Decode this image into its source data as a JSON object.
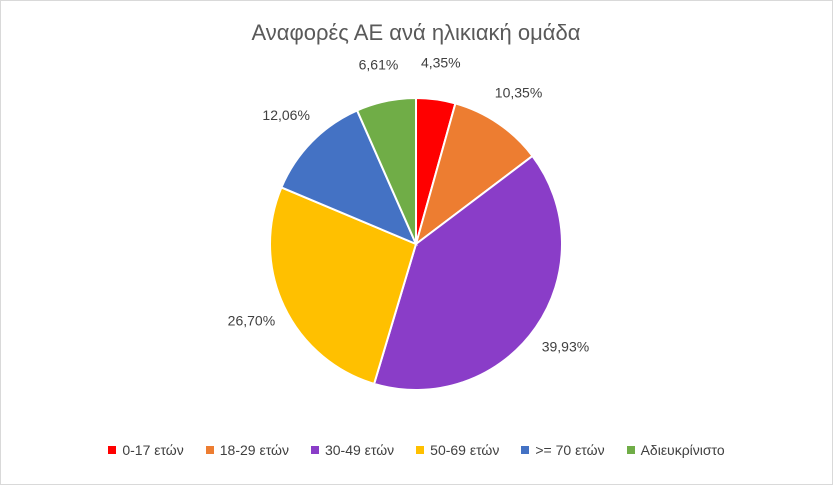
{
  "chart_data": {
    "type": "pie",
    "title": "Αναφορές ΑΕ ανά ηλικιακή ομάδα",
    "categories": [
      "0-17 ετών",
      "18-29 ετών",
      "30-49 ετών",
      "50-69 ετών",
      ">= 70 ετών",
      "Αδιευκρίνιστο"
    ],
    "values": [
      4.35,
      10.35,
      39.93,
      26.7,
      12.06,
      6.61
    ],
    "value_labels": [
      "4,35%",
      "10,35%",
      "39,93%",
      "26,70%",
      "12,06%",
      "6,61%"
    ],
    "colors": [
      "#ff0000",
      "#ed7d31",
      "#8a3dc8",
      "#ffc000",
      "#4472c4",
      "#70ad47"
    ],
    "legend": "bottom"
  }
}
